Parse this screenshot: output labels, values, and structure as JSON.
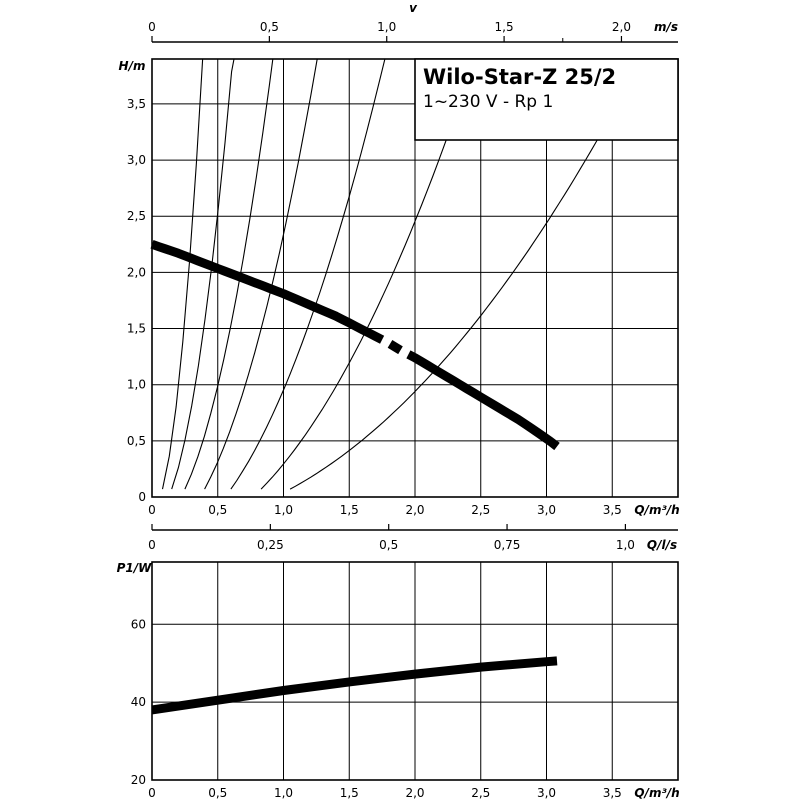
{
  "title": {
    "line1": "Wilo-Star-Z 25/2",
    "line2": "1~230 V - Rp 1"
  },
  "chart_data": [
    {
      "type": "line",
      "title": "Wilo-Star-Z 25/2",
      "xlabel": "Q/m³/h",
      "ylabel": "H/m",
      "xlim": [
        0,
        4
      ],
      "ylim": [
        0,
        3.9
      ],
      "x_ticks": [
        "0",
        "0,5",
        "1,0",
        "1,5",
        "2,0",
        "2,5",
        "3,0",
        "3,5"
      ],
      "y_ticks": [
        "0",
        "0,5",
        "1,0",
        "1,5",
        "2,0",
        "2,5",
        "3,0",
        "3,5"
      ],
      "grid": true,
      "top_axis": {
        "label": "v",
        "unit": "m/s",
        "ticks": [
          "0",
          "0,5",
          "1,0",
          "1,5",
          "2,0"
        ],
        "values": [
          0,
          0.5,
          1.0,
          1.5,
          2.0
        ],
        "q_per_unit": 1.785
      },
      "series": [
        {
          "x": [
            0.0,
            0.2,
            0.4,
            0.6,
            0.8,
            1.0,
            1.2,
            1.4,
            1.6,
            1.7,
            1.8,
            1.9,
            2.0,
            2.2,
            2.4,
            2.6,
            2.8,
            3.0,
            3.08
          ],
          "y": [
            2.25,
            2.17,
            2.08,
            1.99,
            1.9,
            1.81,
            1.71,
            1.61,
            1.49,
            1.43,
            1.37,
            1.3,
            1.24,
            1.1,
            0.96,
            0.82,
            0.68,
            0.52,
            0.45
          ],
          "dashed_segment": [
            1.75,
            1.95
          ]
        }
      ],
      "system_curves": [
        {
          "x0": 0.08,
          "k": 27.0
        },
        {
          "x0": 0.15,
          "k": 10.8
        },
        {
          "x0": 0.25,
          "k": 4.9
        },
        {
          "x0": 0.4,
          "k": 2.7
        },
        {
          "x0": 0.6,
          "k": 1.38
        },
        {
          "x0": 0.83,
          "k": 0.72
        },
        {
          "x0": 1.05,
          "k": 0.3
        }
      ]
    },
    {
      "type": "line",
      "xlabel": "Q/m³/h",
      "ylabel": "P1/W",
      "xlim": [
        0,
        4
      ],
      "ylim": [
        20,
        76
      ],
      "x_ticks": [
        "0",
        "0,5",
        "1,0",
        "1,5",
        "2,0",
        "2,5",
        "3,0",
        "3,5"
      ],
      "y_ticks": [
        "20",
        "40",
        "60"
      ],
      "grid": true,
      "top_axis": {
        "unit": "Q/l/s",
        "ticks": [
          "0",
          "0,25",
          "0,5",
          "0,75",
          "1,0"
        ],
        "values": [
          0,
          0.25,
          0.5,
          0.75,
          1.0
        ],
        "q_per_unit": 3.6
      },
      "series": [
        {
          "x": [
            0.0,
            0.5,
            1.0,
            1.5,
            2.0,
            2.5,
            3.0,
            3.08
          ],
          "y": [
            38.0,
            40.5,
            43.0,
            45.2,
            47.2,
            49.0,
            50.4,
            50.6
          ]
        }
      ]
    }
  ]
}
